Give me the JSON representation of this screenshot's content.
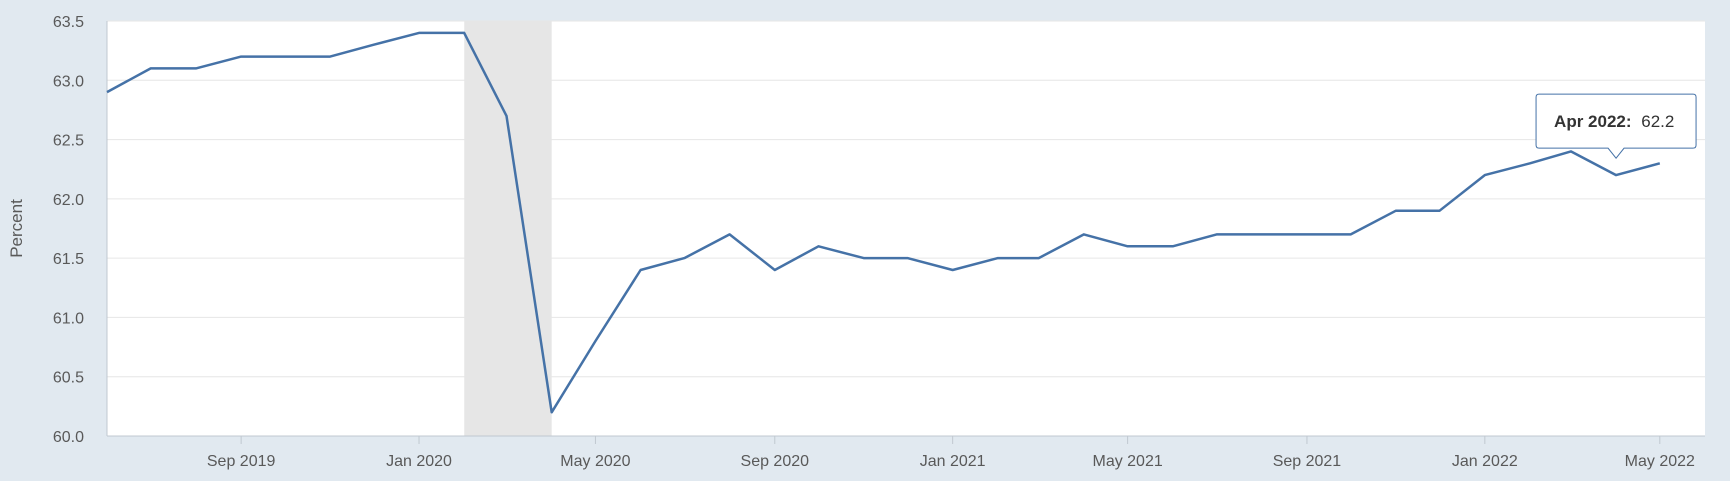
{
  "chart_data": {
    "type": "line",
    "ylabel": "Percent",
    "ylim": [
      60.0,
      63.5
    ],
    "xlim": [
      "2019-06-01",
      "2022-06-01"
    ],
    "y_ticks": [
      "60.0",
      "60.5",
      "61.0",
      "61.5",
      "62.0",
      "62.5",
      "63.0",
      "63.5"
    ],
    "x_ticks": [
      {
        "label": "Sep 2019",
        "date": "2019-09-01"
      },
      {
        "label": "Jan 2020",
        "date": "2020-01-01"
      },
      {
        "label": "May 2020",
        "date": "2020-05-01"
      },
      {
        "label": "Sep 2020",
        "date": "2020-09-01"
      },
      {
        "label": "Jan 2021",
        "date": "2021-01-01"
      },
      {
        "label": "May 2021",
        "date": "2021-05-01"
      },
      {
        "label": "Sep 2021",
        "date": "2021-09-01"
      },
      {
        "label": "Jan 2022",
        "date": "2022-01-01"
      },
      {
        "label": "May 2022",
        "date": "2022-05-01"
      }
    ],
    "grid": true,
    "shaded_period": {
      "start": "2020-02-01",
      "end": "2020-04-01",
      "color": "#e6e6e6"
    },
    "series": [
      {
        "color": "#4572a7",
        "points": [
          {
            "x": "2019-06-01",
            "y": 62.9
          },
          {
            "x": "2019-07-01",
            "y": 63.1
          },
          {
            "x": "2019-08-01",
            "y": 63.1
          },
          {
            "x": "2019-09-01",
            "y": 63.2
          },
          {
            "x": "2019-10-01",
            "y": 63.2
          },
          {
            "x": "2019-11-01",
            "y": 63.2
          },
          {
            "x": "2019-12-01",
            "y": 63.3
          },
          {
            "x": "2020-01-01",
            "y": 63.4
          },
          {
            "x": "2020-02-01",
            "y": 63.4
          },
          {
            "x": "2020-03-01",
            "y": 62.7
          },
          {
            "x": "2020-04-01",
            "y": 60.2
          },
          {
            "x": "2020-05-01",
            "y": 60.8
          },
          {
            "x": "2020-06-01",
            "y": 61.4
          },
          {
            "x": "2020-07-01",
            "y": 61.5
          },
          {
            "x": "2020-08-01",
            "y": 61.7
          },
          {
            "x": "2020-09-01",
            "y": 61.4
          },
          {
            "x": "2020-10-01",
            "y": 61.6
          },
          {
            "x": "2020-11-01",
            "y": 61.5
          },
          {
            "x": "2020-12-01",
            "y": 61.5
          },
          {
            "x": "2021-01-01",
            "y": 61.4
          },
          {
            "x": "2021-02-01",
            "y": 61.5
          },
          {
            "x": "2021-03-01",
            "y": 61.5
          },
          {
            "x": "2021-04-01",
            "y": 61.7
          },
          {
            "x": "2021-05-01",
            "y": 61.6
          },
          {
            "x": "2021-06-01",
            "y": 61.6
          },
          {
            "x": "2021-07-01",
            "y": 61.7
          },
          {
            "x": "2021-08-01",
            "y": 61.7
          },
          {
            "x": "2021-09-01",
            "y": 61.7
          },
          {
            "x": "2021-10-01",
            "y": 61.7
          },
          {
            "x": "2021-11-01",
            "y": 61.9
          },
          {
            "x": "2021-12-01",
            "y": 61.9
          },
          {
            "x": "2022-01-01",
            "y": 62.2
          },
          {
            "x": "2022-02-01",
            "y": 62.3
          },
          {
            "x": "2022-03-01",
            "y": 62.4
          },
          {
            "x": "2022-04-01",
            "y": 62.2
          },
          {
            "x": "2022-05-01",
            "y": 62.3
          }
        ]
      }
    ],
    "tooltip": {
      "label": "Apr 2022:",
      "value": "62.2",
      "x": "2022-04-01"
    }
  }
}
